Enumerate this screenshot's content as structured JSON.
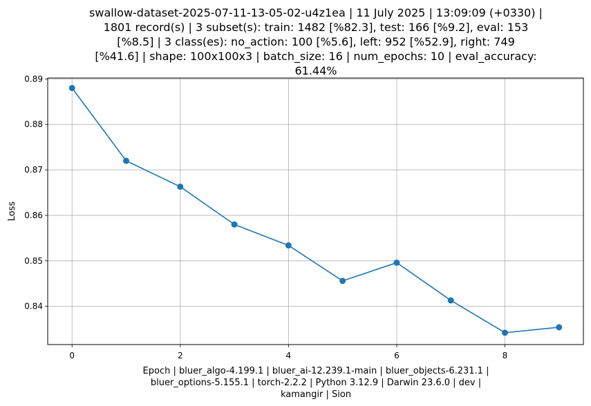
{
  "chart_data": {
    "type": "line",
    "title_lines": [
      "swallow-dataset-2025-07-11-13-05-02-u4z1ea | 11 July 2025 | 13:09:09 (+0330) |",
      "1801 record(s) | 3 subset(s): train: 1482 [%82.3], test: 166 [%9.2], eval: 153",
      "[%8.5] | 3 class(es): no_action: 100 [%5.6], left: 952 [%52.9], right: 749",
      "[%41.6] | shape: 100x100x3 | batch_size: 16 | num_epochs: 10 | eval_accuracy:",
      "61.44%"
    ],
    "xlabel_lines": [
      "Epoch | bluer_algo-4.199.1 | bluer_ai-12.239.1-main | bluer_objects-6.231.1 |",
      "bluer_options-5.155.1 | torch-2.2.2 | Python 3.12.9 | Darwin 23.6.0 | dev |",
      "kamangir | Sion"
    ],
    "ylabel": "Loss",
    "x": [
      0,
      1,
      2,
      3,
      4,
      5,
      6,
      7,
      8,
      9
    ],
    "series": [
      {
        "values": [
          0.888,
          0.872,
          0.8663,
          0.858,
          0.8534,
          0.8456,
          0.8496,
          0.8413,
          0.8342,
          0.8354
        ],
        "color": "#1f77b4"
      }
    ],
    "xlim": [
      -0.45,
      9.45
    ],
    "ylim": [
      0.8316,
      0.8902
    ],
    "xticks": [
      0,
      2,
      4,
      6,
      8
    ],
    "yticks": [
      0.84,
      0.85,
      0.86,
      0.87,
      0.88,
      0.89
    ],
    "ytick_labels": [
      "0.84",
      "0.85",
      "0.86",
      "0.87",
      "0.88",
      "0.89"
    ],
    "grid": true,
    "marker": "circle"
  }
}
